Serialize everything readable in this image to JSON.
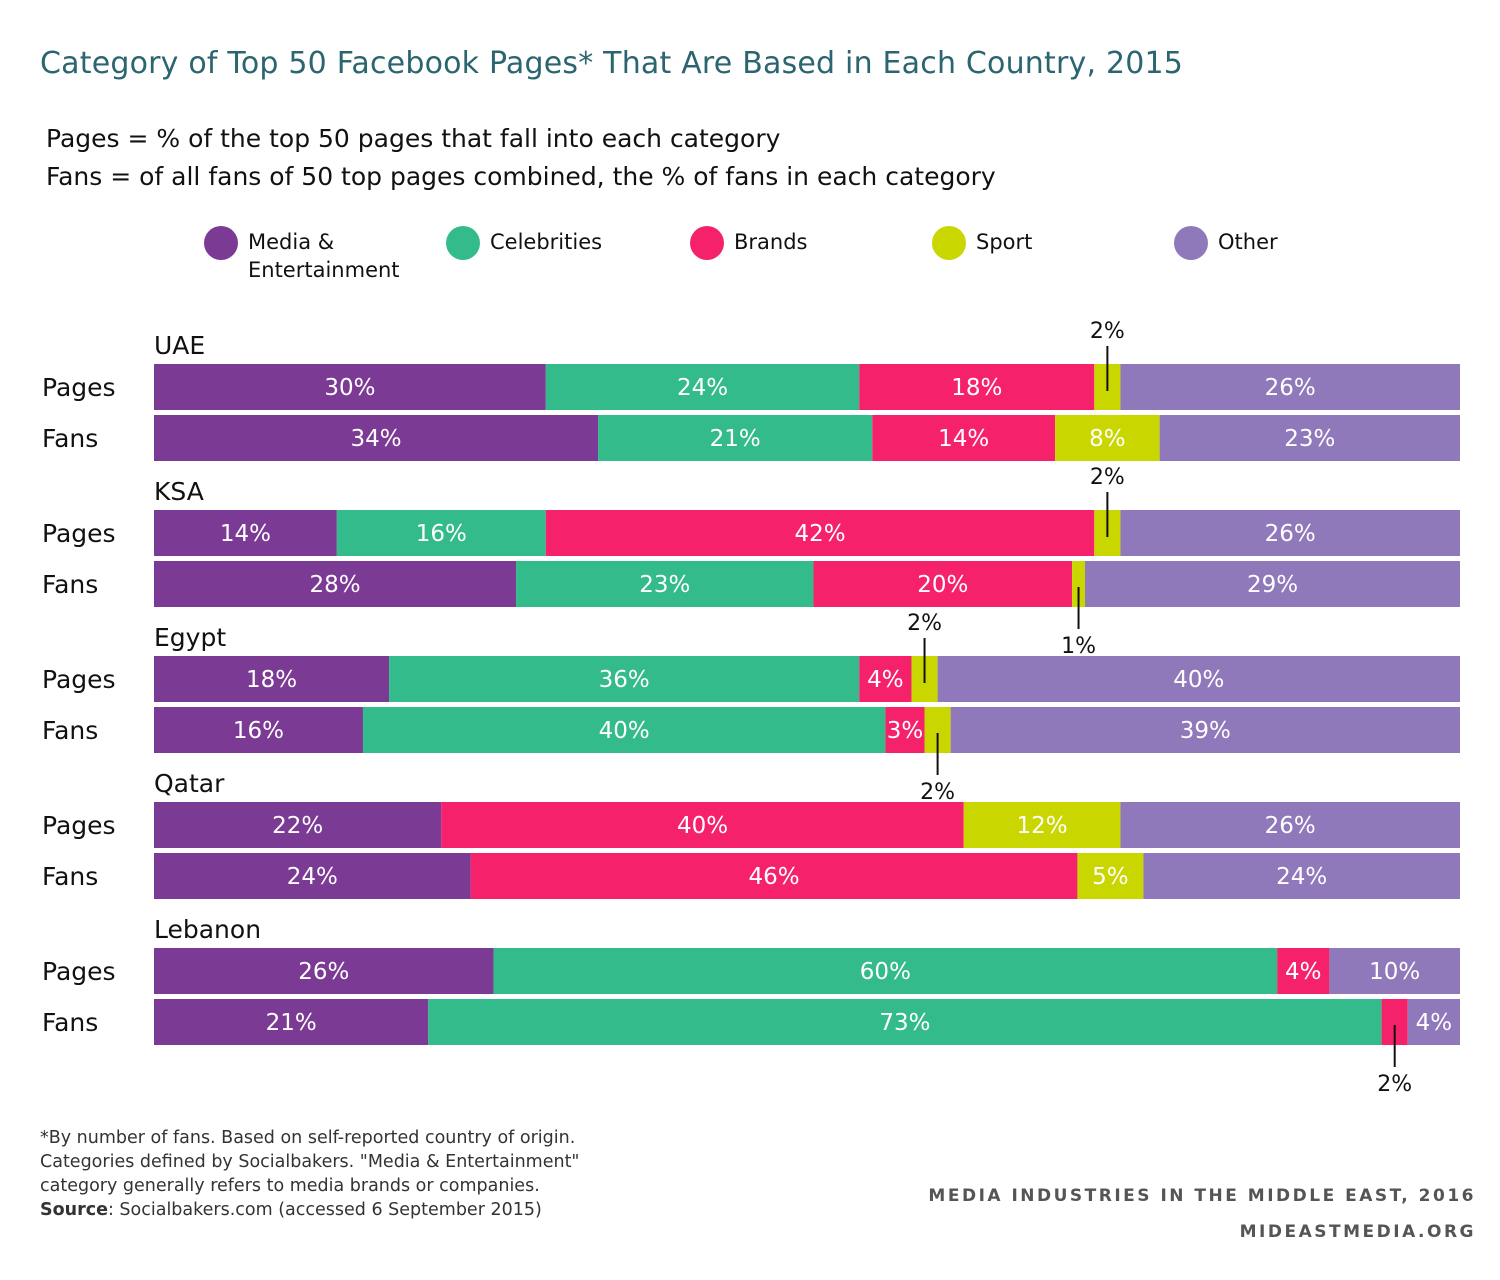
{
  "title": "Category of Top 50 Facebook Pages* That Are Based in Each Country, 2015",
  "notes": [
    "Pages = % of the top 50 pages that fall into each category",
    "Fans = of all fans of 50 top pages combined, the % of fans in each category"
  ],
  "legend": [
    {
      "label": "Media &\nEntertainment",
      "color": "#7b3a94"
    },
    {
      "label": "Celebrities",
      "color": "#34bb8b"
    },
    {
      "label": "Brands",
      "color": "#f5226b"
    },
    {
      "label": "Sport",
      "color": "#c9d600"
    },
    {
      "label": "Other",
      "color": "#8f79bb"
    }
  ],
  "chart_data": {
    "type": "bar",
    "orientation": "horizontal",
    "stacked": true,
    "percent_stacked": true,
    "series_names": [
      "Media & Entertainment",
      "Celebrities",
      "Brands",
      "Sport",
      "Other"
    ],
    "colors": [
      "#7b3a94",
      "#34bb8b",
      "#f5226b",
      "#c9d600",
      "#8f79bb"
    ],
    "groups": [
      {
        "name": "UAE",
        "rows": [
          {
            "label": "Pages",
            "values": [
              30,
              24,
              18,
              2,
              26
            ],
            "value_labels": [
              "30%",
              "24%",
              "18%",
              "2%",
              "26%"
            ]
          },
          {
            "label": "Fans",
            "values": [
              34,
              21,
              14,
              8,
              23
            ],
            "value_labels": [
              "34%",
              "21%",
              "14%",
              "8%",
              "23%"
            ]
          }
        ]
      },
      {
        "name": "KSA",
        "rows": [
          {
            "label": "Pages",
            "values": [
              14,
              16,
              42,
              2,
              26
            ],
            "value_labels": [
              "14%",
              "16%",
              "42%",
              "2%",
              "26%"
            ]
          },
          {
            "label": "Fans",
            "values": [
              28,
              23,
              20,
              1,
              29
            ],
            "value_labels": [
              "28%",
              "23%",
              "20%",
              "1%",
              "29%"
            ]
          }
        ]
      },
      {
        "name": "Egypt",
        "rows": [
          {
            "label": "Pages",
            "values": [
              18,
              36,
              4,
              2,
              40
            ],
            "value_labels": [
              "18%",
              "36%",
              "4%",
              "2%",
              "40%"
            ]
          },
          {
            "label": "Fans",
            "values": [
              16,
              40,
              3,
              2,
              39
            ],
            "value_labels": [
              "16%",
              "40%",
              "3%",
              "2%",
              "39%"
            ]
          }
        ]
      },
      {
        "name": "Qatar",
        "rows": [
          {
            "label": "Pages",
            "values": [
              22,
              0,
              40,
              12,
              26
            ],
            "value_labels": [
              "22%",
              "",
              "40%",
              "12%",
              "26%"
            ]
          },
          {
            "label": "Fans",
            "values": [
              24,
              0,
              46,
              5,
              24
            ],
            "value_labels": [
              "24%",
              "",
              "46%",
              "5%",
              "24%"
            ]
          }
        ]
      },
      {
        "name": "Lebanon",
        "rows": [
          {
            "label": "Pages",
            "values": [
              26,
              60,
              4,
              0,
              10
            ],
            "value_labels": [
              "26%",
              "60%",
              "4%",
              "",
              "10%"
            ]
          },
          {
            "label": "Fans",
            "values": [
              21,
              73,
              2,
              0,
              4
            ],
            "value_labels": [
              "21%",
              "73%",
              "2%",
              "",
              "4%"
            ]
          }
        ]
      }
    ],
    "xlim": [
      0,
      100
    ]
  },
  "footnote": {
    "lines": [
      "*By number of fans. Based on self-reported country of origin.",
      "Categories defined by Socialbakers. \"Media & Entertainment\"",
      "category generally refers to media brands or companies."
    ],
    "source_label": "Source",
    "source_text": ": Socialbakers.com (accessed 6 September 2015)"
  },
  "branding": [
    "MEDIA INDUSTRIES IN THE MIDDLE EAST, 2016",
    "MIDEASTMEDIA.ORG"
  ]
}
